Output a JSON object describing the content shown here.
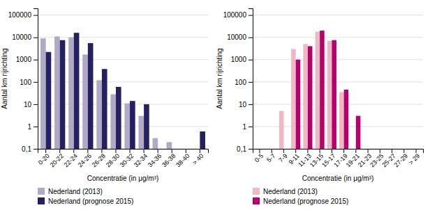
{
  "chart_data": [
    {
      "type": "bar",
      "categories": [
        "0-20",
        "20-22",
        "22-24",
        "24-26",
        "26-28",
        "28-30",
        "30-32",
        "32-34",
        "34-36",
        "36-38",
        "38-40",
        "> 40"
      ],
      "series": [
        {
          "name": "Nederland (2013)",
          "color": "#b0aac6",
          "values": [
            9000,
            11000,
            10000,
            1700,
            120,
            28,
            11,
            3,
            0.3,
            0.2,
            null,
            null
          ]
        },
        {
          "name": "Nederland (prognose 2015)",
          "color": "#252060",
          "values": [
            2200,
            7500,
            16000,
            5500,
            380,
            60,
            14,
            10,
            null,
            null,
            null,
            0.6
          ]
        }
      ],
      "xlabel": "Concentratie (in μg/m³)",
      "ylabel": "Aantal km rijrichting",
      "log": "y",
      "ylim": [
        0.1,
        200000
      ],
      "yticks": [
        {
          "value": 0.1,
          "label": "0,1"
        },
        1,
        10,
        100,
        1000,
        10000,
        100000
      ],
      "grid": true,
      "legend": "bottom"
    },
    {
      "type": "bar",
      "categories": [
        "0-5",
        "5-7",
        "7-9",
        "9-11",
        "11-13",
        "13-15",
        "15-17",
        "17-19",
        "19-21",
        "21-23",
        "23-25",
        "25-27",
        "27-29",
        "> 29"
      ],
      "series": [
        {
          "name": "Nederland (2013)",
          "color": "#f0b8c4",
          "values": [
            null,
            null,
            5,
            3000,
            5000,
            18000,
            7000,
            35,
            null,
            null,
            null,
            null,
            null,
            null
          ]
        },
        {
          "name": "Nederland (prognose 2015)",
          "color": "#b5006e",
          "values": [
            null,
            null,
            null,
            1000,
            4000,
            20000,
            7500,
            45,
            3,
            null,
            null,
            null,
            null,
            null
          ]
        }
      ],
      "xlabel": "Concentratie (in μg/m³)",
      "ylabel": "Aantal km rijrichting",
      "log": "y",
      "ylim": [
        0.1,
        200000
      ],
      "yticks": [
        {
          "value": 0.1,
          "label": "0,1"
        },
        1,
        10,
        100,
        1000,
        10000,
        100000
      ],
      "grid": true,
      "legend": "bottom"
    }
  ]
}
